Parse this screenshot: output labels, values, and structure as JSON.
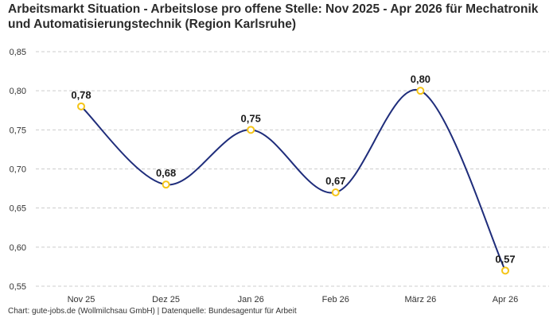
{
  "header": {
    "title": "Arbeitsmarkt Situation - Arbeitslose pro offene Stelle: Nov 2025 - Apr 2026 für Mechatronik und Automatisierungstechnik (Region Karlsruhe)"
  },
  "footer": {
    "source": "Chart: gute-jobs.de (Wollmilchsau GmbH) | Datenquelle: Bundesagentur für Arbeit"
  },
  "colors": {
    "line": "#1f2d7b",
    "marker": "#f5c518",
    "grid": "#cccccc"
  },
  "chart_data": {
    "type": "line",
    "title": "Arbeitsmarkt Situation - Arbeitslose pro offene Stelle: Nov 2025 - Apr 2026 für Mechatronik und Automatisierungstechnik (Region Karlsruhe)",
    "categories": [
      "Nov 25",
      "Dez 25",
      "Jan 26",
      "Feb 26",
      "März 26",
      "Apr 26"
    ],
    "values": [
      0.78,
      0.68,
      0.75,
      0.67,
      0.8,
      0.57
    ],
    "data_labels": [
      "0,78",
      "0,68",
      "0,75",
      "0,67",
      "0,80",
      "0,57"
    ],
    "yticks": [
      0.55,
      0.6,
      0.65,
      0.7,
      0.75,
      0.8,
      0.85
    ],
    "ytick_labels": [
      "0,55",
      "0,60",
      "0,65",
      "0,70",
      "0,75",
      "0,80",
      "0,85"
    ],
    "ylim": [
      0.55,
      0.85
    ],
    "xlabel": "",
    "ylabel": "",
    "grid": "horizontal dashed",
    "legend": "none"
  }
}
